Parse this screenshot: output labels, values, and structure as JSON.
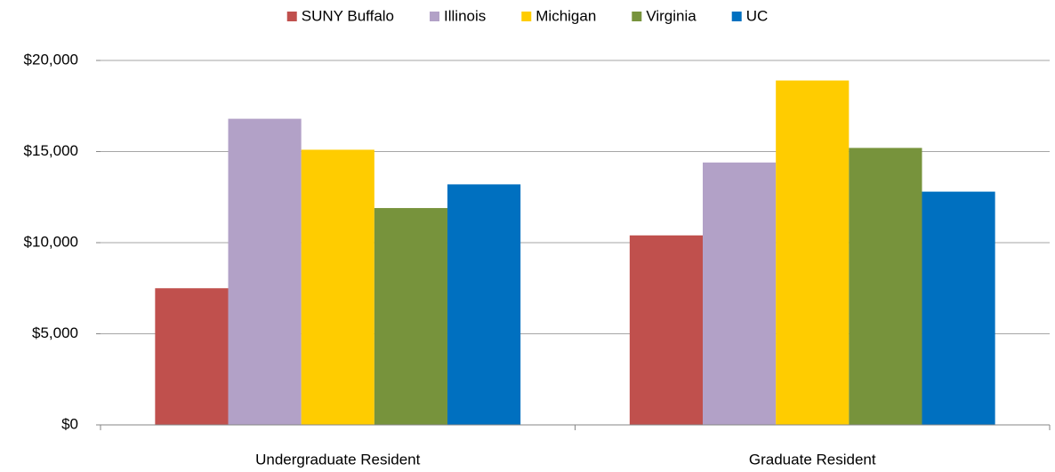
{
  "chart_data": {
    "type": "bar",
    "categories": [
      "Undergraduate Resident",
      "Graduate Resident"
    ],
    "series": [
      {
        "name": "SUNY Buffalo",
        "color": "#c0504d",
        "values": [
          7500,
          10400
        ]
      },
      {
        "name": "Illinois",
        "color": "#b2a1c7",
        "values": [
          16800,
          14400
        ]
      },
      {
        "name": "Michigan",
        "color": "#ffcc00",
        "values": [
          15100,
          18900
        ]
      },
      {
        "name": "Virginia",
        "color": "#77933c",
        "values": [
          11900,
          15200
        ]
      },
      {
        "name": "UC",
        "color": "#0070c0",
        "values": [
          13200,
          12800
        ]
      }
    ],
    "ylim": [
      0,
      20000
    ],
    "yticks": [
      {
        "value": 0,
        "label": "$0"
      },
      {
        "value": 5000,
        "label": "$5,000"
      },
      {
        "value": 10000,
        "label": "$10,000"
      },
      {
        "value": 15000,
        "label": "$15,000"
      },
      {
        "value": 20000,
        "label": "$20,000"
      }
    ],
    "grid": true,
    "legend": "top"
  }
}
